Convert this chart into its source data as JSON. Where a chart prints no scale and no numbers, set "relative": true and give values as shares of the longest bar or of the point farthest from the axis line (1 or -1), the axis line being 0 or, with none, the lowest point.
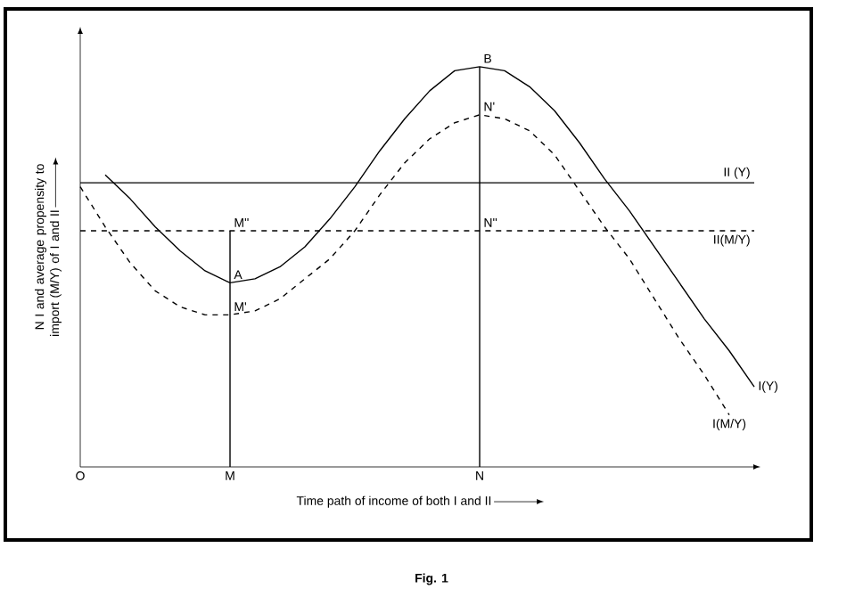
{
  "chart_data": {
    "type": "line",
    "relative": true,
    "xlabel": "Time path of income of both I and II",
    "ylabel": "N I and average propensity to import (M/Y) of I and II",
    "categories": [
      "O",
      null,
      null,
      null,
      null,
      null,
      "M",
      null,
      null,
      null,
      null,
      null,
      null,
      null,
      null,
      null,
      "N",
      null,
      null,
      null,
      null,
      null,
      null,
      null,
      null,
      null,
      null,
      null
    ],
    "series": [
      {
        "name": "I(Y)",
        "color": "#000000",
        "line_style": "solid",
        "values": [
          null,
          0.73,
          0.67,
          0.6,
          0.54,
          0.49,
          0.46,
          0.47,
          0.5,
          0.55,
          0.62,
          0.7,
          0.79,
          0.87,
          0.94,
          0.99,
          1.0,
          0.99,
          0.95,
          0.89,
          0.81,
          0.72,
          0.64,
          0.55,
          0.46,
          0.37,
          0.29,
          0.2
        ]
      },
      {
        "name": "I(M/Y)",
        "color": "#000000",
        "line_style": "dashed",
        "values": [
          0.7,
          0.6,
          0.51,
          0.44,
          0.4,
          0.38,
          0.38,
          0.39,
          0.42,
          0.47,
          0.52,
          0.59,
          0.68,
          0.76,
          0.82,
          0.86,
          0.88,
          0.87,
          0.84,
          0.78,
          0.69,
          0.6,
          0.52,
          0.42,
          0.32,
          0.23,
          0.13,
          null
        ]
      },
      {
        "name": "II (Y)",
        "color": "#000000",
        "line_style": "solid",
        "values": [
          0.71,
          0.71,
          0.71,
          0.71,
          0.71,
          0.71,
          0.71,
          0.71,
          0.71,
          0.71,
          0.71,
          0.71,
          0.71,
          0.71,
          0.71,
          0.71,
          0.71,
          0.71,
          0.71,
          0.71,
          0.71,
          0.71,
          0.71,
          0.71,
          0.71,
          0.71,
          0.71,
          0.71
        ]
      },
      {
        "name": "II(M/Y)",
        "color": "#000000",
        "line_style": "dashed",
        "values": [
          0.59,
          0.59,
          0.59,
          0.59,
          0.59,
          0.59,
          0.59,
          0.59,
          0.59,
          0.59,
          0.59,
          0.59,
          0.59,
          0.59,
          0.59,
          0.59,
          0.59,
          0.59,
          0.59,
          0.59,
          0.59,
          0.59,
          0.59,
          0.59,
          0.59,
          0.59,
          0.59,
          0.59
        ]
      },
      {
        "color": "#000000",
        "line_style": "solid",
        "x": [
          "M",
          "M"
        ],
        "values": [
          0,
          0.59
        ]
      },
      {
        "color": "#000000",
        "line_style": "solid",
        "x": [
          "N",
          "N"
        ],
        "values": [
          0,
          1.0
        ]
      }
    ],
    "annotations": [
      {
        "text": "A",
        "x": "M",
        "y": 0.46
      },
      {
        "text": "M''",
        "x": "M",
        "y": 0.59
      },
      {
        "text": "M'",
        "x": "M",
        "y": 0.38
      },
      {
        "text": "B",
        "x": "N",
        "y": 1.0
      },
      {
        "text": "N'",
        "x": "N",
        "y": 0.88
      },
      {
        "text": "N''",
        "x": "N",
        "y": 0.59
      },
      "Fig. 1"
    ]
  }
}
